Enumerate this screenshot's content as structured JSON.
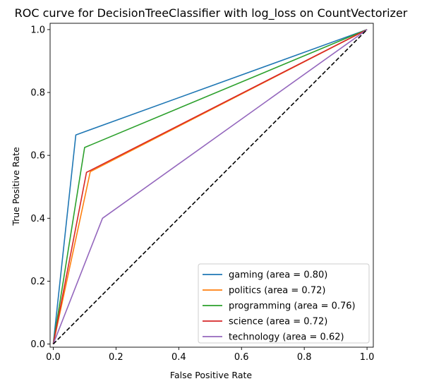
{
  "chart_data": {
    "type": "line",
    "title": "ROC curve for DecisionTreeClassifier with log_loss on CountVectorizer",
    "xlabel": "False Positive Rate",
    "ylabel": "True Positive Rate",
    "xlim": [
      -0.01,
      1.02
    ],
    "ylim": [
      -0.01,
      1.02
    ],
    "xticks": [
      "0.0",
      "0.2",
      "0.4",
      "0.6",
      "0.8",
      "1.0"
    ],
    "yticks": [
      "0.0",
      "0.2",
      "0.4",
      "0.6",
      "0.8",
      "1.0"
    ],
    "grid": false,
    "legend_position": "lower-right",
    "series": [
      {
        "name": "gaming (area = 0.80)",
        "color": "#1f77b4",
        "x": [
          0,
          0.072,
          1
        ],
        "y": [
          0,
          0.665,
          1
        ]
      },
      {
        "name": "politics (area = 0.72)",
        "color": "#ff7f0e",
        "x": [
          0,
          0.118,
          1
        ],
        "y": [
          0,
          0.548,
          1
        ]
      },
      {
        "name": "programming (area = 0.76)",
        "color": "#2ca02c",
        "x": [
          0,
          0.1,
          1
        ],
        "y": [
          0,
          0.625,
          1
        ]
      },
      {
        "name": "science (area = 0.72)",
        "color": "#d62728",
        "x": [
          0,
          0.106,
          1
        ],
        "y": [
          0,
          0.546,
          1
        ]
      },
      {
        "name": "technology (area = 0.62)",
        "color": "#9467bd",
        "x": [
          0,
          0.157,
          1
        ],
        "y": [
          0,
          0.4,
          1
        ]
      }
    ],
    "reference_line": {
      "x": [
        0,
        1
      ],
      "y": [
        0,
        1
      ],
      "color": "#000000",
      "style": "dashed"
    }
  }
}
